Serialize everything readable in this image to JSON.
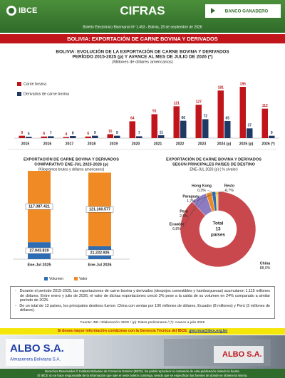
{
  "header": {
    "logo": "IBCE",
    "title": "CIFRAS",
    "sponsor": "BANCO GANADERO",
    "bulletin": "Boletín Electrónico Bisemanal Nº 1.453 - Bolivia, 28 de septiembre de 2026"
  },
  "banner": "BOLIVIA: EXPORTACIÓN DE CARNE BOVINA Y DERIVADOS",
  "chart_data": [
    {
      "type": "bar",
      "title": "BOLIVIA: EVOLUCIÓN DE LA EXPORTACIÓN DE CARNE BOVINA Y DERIVADOS",
      "subtitle": "PERÍODO 2015-2025 (p) Y AVANCE AL MES DE JULIO DE 2026 (*)",
      "note": "(Millones de dólares americanos)",
      "categories": [
        "2015",
        "2016",
        "2017",
        "2018",
        "2019",
        "2020",
        "2021",
        "2022",
        "2023",
        "2024 (p)",
        "2025 (p)",
        "2026 (*)"
      ],
      "series": [
        {
          "name": "Carne bovina",
          "color": "#c0161b",
          "values": [
            9,
            6,
            4,
            6,
            15,
            64,
            91,
            121,
            127,
            181,
            195,
            112
          ]
        },
        {
          "name": "Derivados de carne bovina",
          "color": "#1f3864",
          "values": [
            5,
            7,
            8,
            9,
            9,
            7,
            11,
            66,
            72,
            65,
            37,
            9
          ]
        }
      ]
    },
    {
      "type": "stacked_bar",
      "title": "EXPORTACIÓN DE CARNE BOVINA Y DERIVADOS",
      "subtitle": "COMPARATIVO ENE-JUL 2025-2026 (p)",
      "note": "(Kilogramos brutos y dólares americanos)",
      "categories": [
        "Ene-Jul 2025",
        "Ene-Jul 2026"
      ],
      "series": [
        {
          "name": "Volumen",
          "color": "#2e6db4",
          "values": [
            27943819,
            21232926
          ],
          "value_labels": [
            "27.943.819",
            "21.232.926"
          ]
        },
        {
          "name": "Valor",
          "color": "#f08a24",
          "values": [
            117387421,
            121160577
          ],
          "value_labels": [
            "117.387.421",
            "121.160.577"
          ]
        }
      ]
    },
    {
      "type": "pie",
      "title": "EXPORTACIÓN DE CARNE BOVINA Y DERIVADOS",
      "subtitle": "SEGÚN PRINCIPALES PAÍSES DE DESTINO",
      "note": "ENE-JUL 2026 (p)  ( % s/valor)",
      "categories": [
        "China",
        "Ecuador",
        "Perú",
        "Paraguay",
        "Hong Kong",
        "Resto"
      ],
      "values": [
        88.0,
        6.8,
        2.5,
        1.7,
        0.3,
        0.7
      ],
      "value_labels": [
        "88,0%",
        "6,8%",
        "2,5%",
        "1,7%",
        "0,3%",
        "0,7%"
      ],
      "colors": [
        "#c9484d",
        "#8e7cc3",
        "#f08a24",
        "#2e6db4",
        "#5aa04a",
        "#f3c623"
      ],
      "center_label": [
        "Total",
        "13",
        "países"
      ]
    }
  ],
  "notes": [
    "Durante el período 2015-2025, las exportaciones de carne bovina y derivados (despojos comestibles y hamburguesas) acumularon 1.115 millones de dólares. Entre enero y julio de 2026, el valor de dichas exportaciones creció 3% pese a la caída de su volumen en 24% comparado a similar período de 2025.",
    "De un total de 13 países, los principales destinos fueron: China con ventas por 106 millones de dólares, Ecuador (8 millones) y Perú (3 millones de dólares)."
  ],
  "source": "Fuente: INE / Elaboración: IBCE / (p): Datos preliminares / (*): Avance a julio 2026",
  "contact": {
    "text": "Si desea mayor información contáctese con la Gerencia Técnica del IBCE:",
    "email": "gtecnica@ibce.org.bo"
  },
  "ad": {
    "brand": "ALBO S.A.",
    "tagline": "Almacenera Boliviana S.A."
  },
  "footer": [
    "Derechos Reservados © Instituto Boliviano de Comercio Exterior (IBCE). Se podrá reproducir el contenido de esta publicación citando la fuente.",
    "El IBCE no se hace responsable de la información que sale en este boletín contenga, siendo que se especifican las fuentes de donde se obtiene la misma."
  ]
}
